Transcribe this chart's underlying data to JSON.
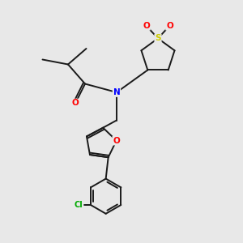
{
  "bg_color": "#e8e8e8",
  "bond_color": "#1a1a1a",
  "atom_colors": {
    "N": "#0000ff",
    "O": "#ff0000",
    "S": "#cccc00",
    "Cl": "#00aa00",
    "C": "#1a1a1a"
  },
  "fig_size": [
    3.0,
    3.0
  ],
  "dpi": 100
}
